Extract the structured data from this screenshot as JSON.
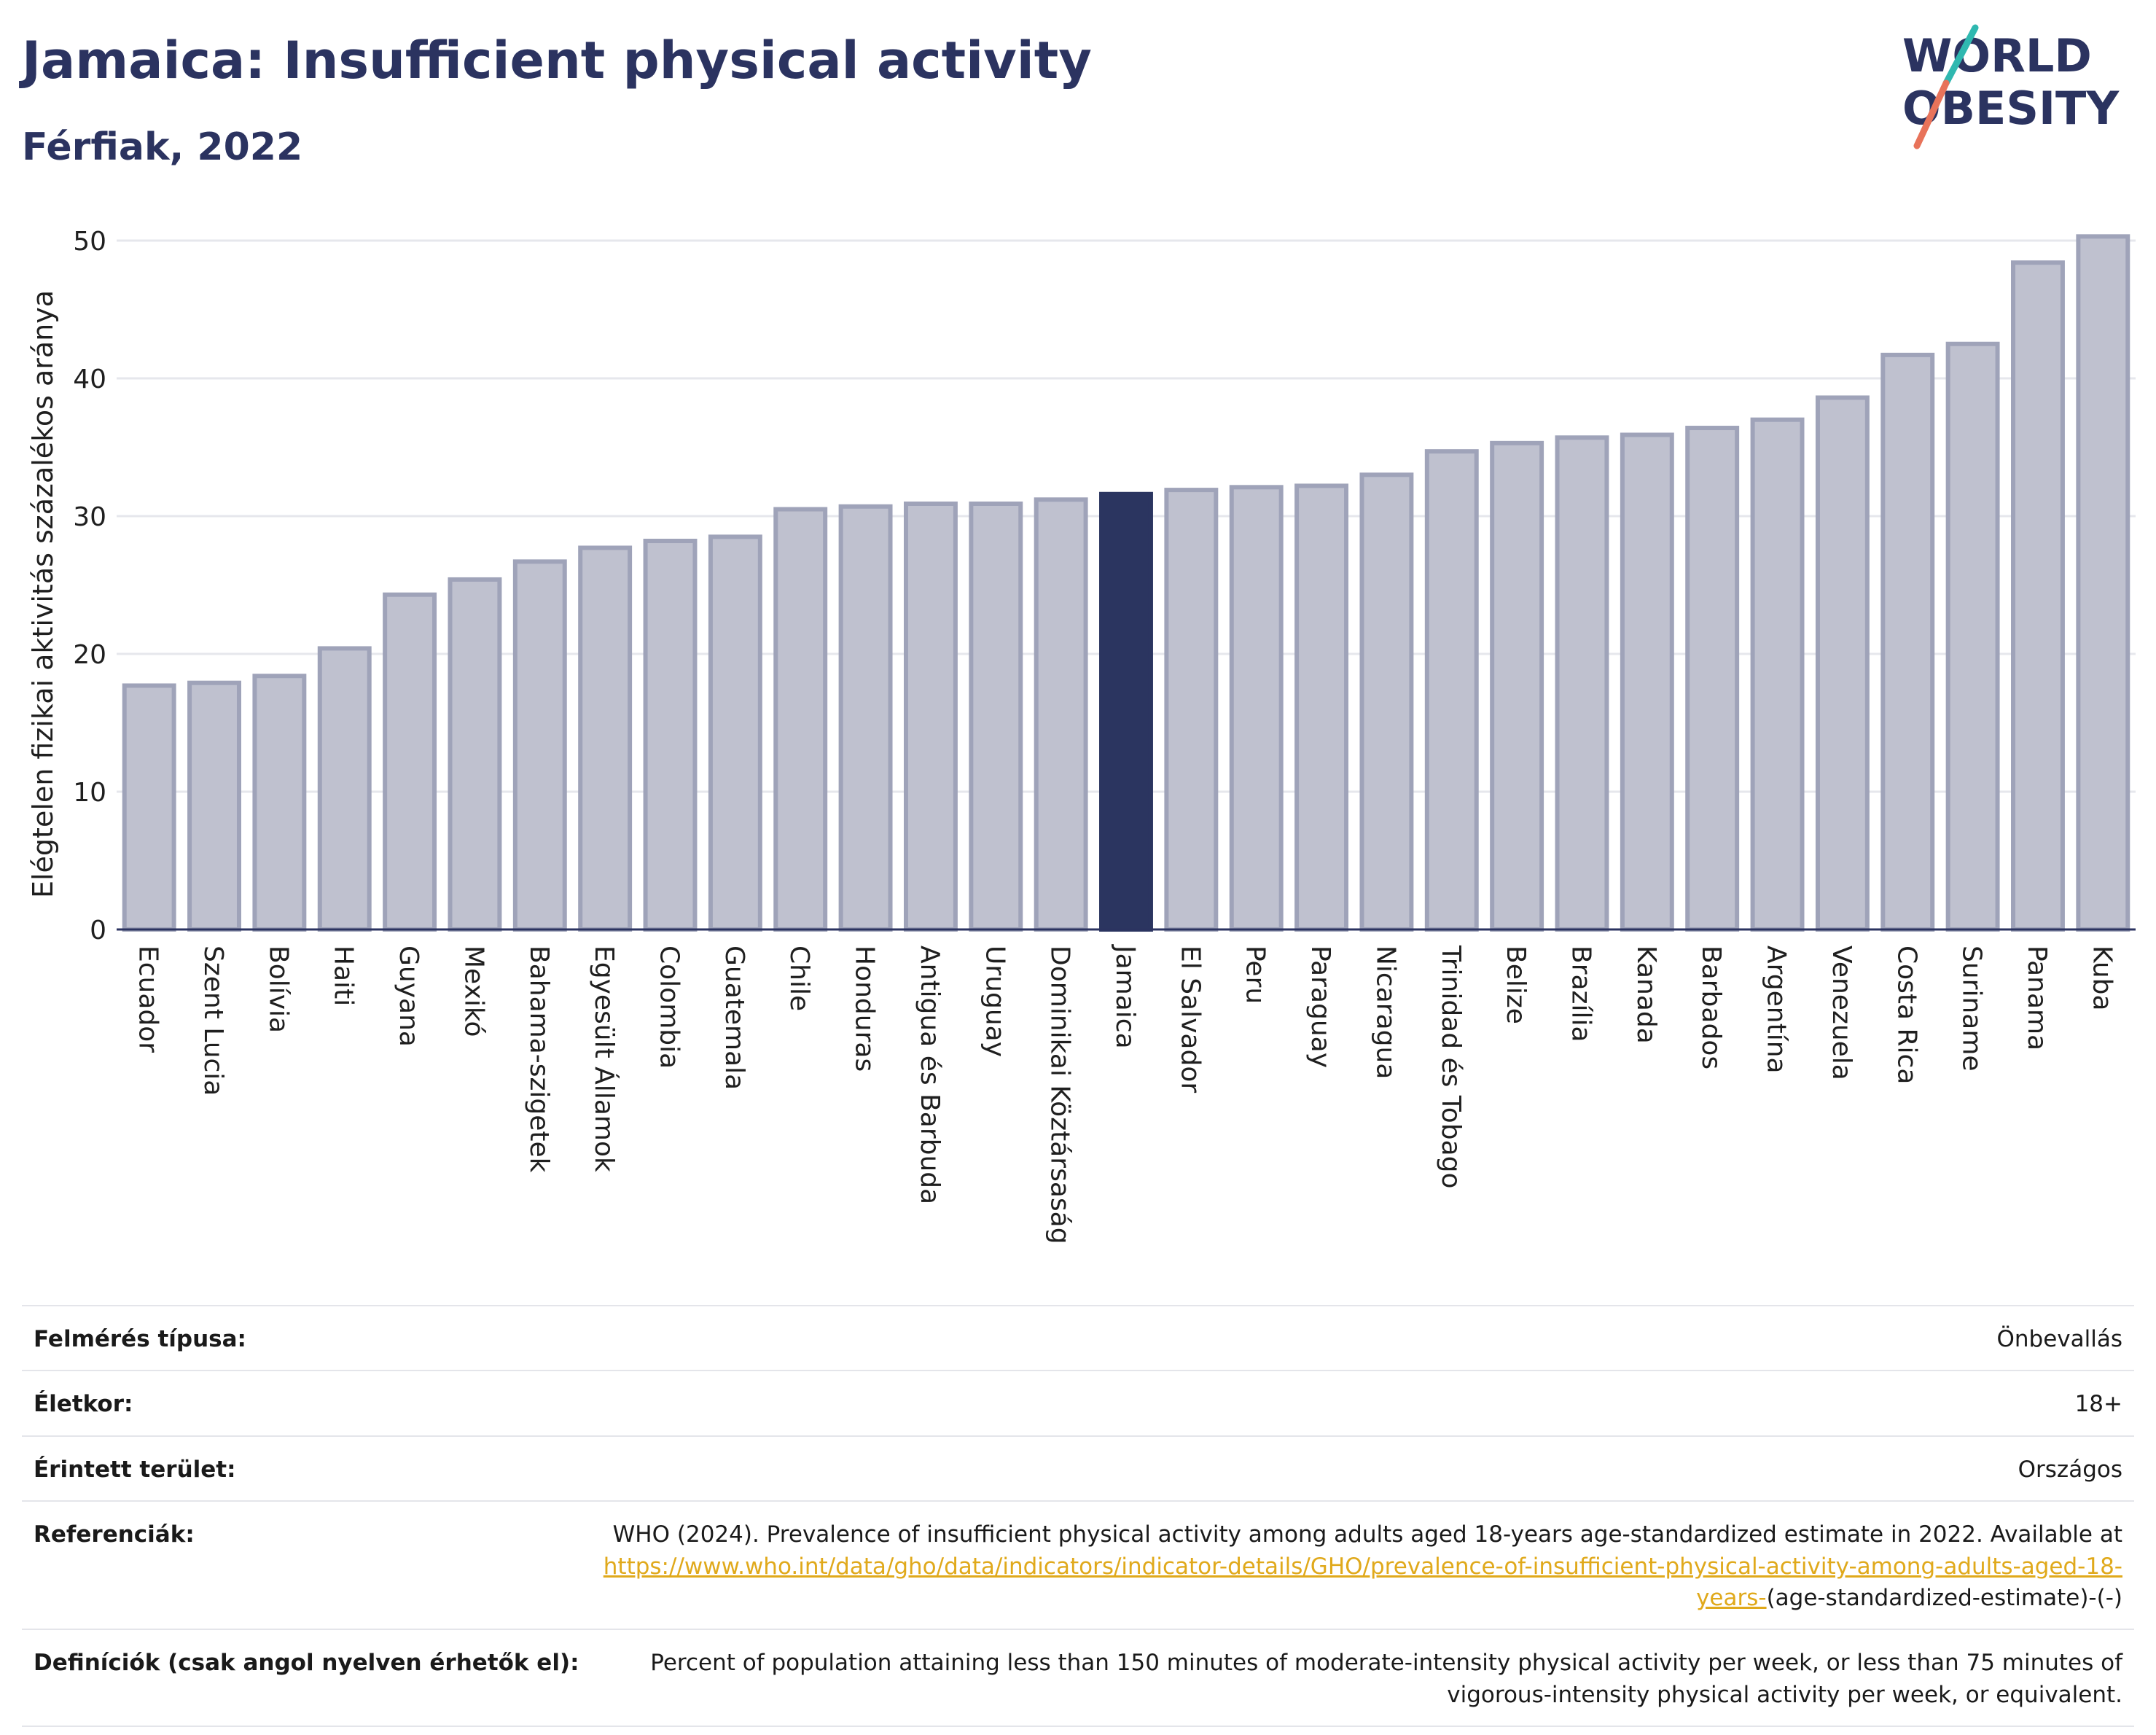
{
  "header": {
    "title": "Jamaica: Insufficient physical activity",
    "subtitle": "Férfiak, 2022"
  },
  "logo": {
    "line1": "WORLD",
    "line2": "OBESITY",
    "colors": {
      "text": "#2b3360",
      "slash_teal": "#2fb8b0",
      "slash_coral": "#e8735a"
    }
  },
  "colors": {
    "bar": "#bfc1cf",
    "bar_border": "#9fa3b9",
    "highlight": "#2b3560",
    "grid": "#e6e7ec",
    "axis": "#2b3360"
  },
  "chart_data": {
    "type": "bar",
    "title": "Jamaica: Insufficient physical activity",
    "subtitle": "Férfiak, 2022",
    "ylabel": "Elégtelen fizikai aktivitás százalékos aránya",
    "xlabel": "",
    "ylim": [
      0,
      50
    ],
    "yticks": [
      0,
      10,
      20,
      30,
      40,
      50
    ],
    "grid": true,
    "highlight": "Jamaica",
    "categories": [
      "Ecuador",
      "Szent Lucia",
      "Bolívia",
      "Haiti",
      "Guyana",
      "Mexikó",
      "Bahama-szigetek",
      "Egyesült Államok",
      "Colombia",
      "Guatemala",
      "Chile",
      "Honduras",
      "Antigua és Barbuda",
      "Uruguay",
      "Dominikai Köztársaság",
      "Jamaica",
      "El Salvador",
      "Peru",
      "Paraguay",
      "Nicaragua",
      "Trinidad és Tobago",
      "Belize",
      "Brazília",
      "Kanada",
      "Barbados",
      "Argentína",
      "Venezuela",
      "Costa Rica",
      "Suriname",
      "Panama",
      "Kuba"
    ],
    "values": [
      17.7,
      17.9,
      18.4,
      20.4,
      24.3,
      25.4,
      26.7,
      27.7,
      28.2,
      28.5,
      30.5,
      30.7,
      30.9,
      30.9,
      31.2,
      31.6,
      31.9,
      32.1,
      32.2,
      33.0,
      34.7,
      35.3,
      35.7,
      35.9,
      36.4,
      37.0,
      38.6,
      41.7,
      42.5,
      48.4,
      50.3
    ]
  },
  "meta": {
    "survey_type": {
      "label": "Felmérés típusa:",
      "value": "Önbevallás"
    },
    "age": {
      "label": "Életkor:",
      "value": "18+"
    },
    "area": {
      "label": "Érintett terület:",
      "value": "Országos"
    },
    "references": {
      "label": "Referenciák:",
      "text": "WHO (2024). Prevalence of insufficient physical activity among adults aged 18-years age-standardized estimate in 2022. Available at",
      "link": "https://www.who.int/data/gho/data/indicators/indicator-details/GHO/prevalence-of-insufficient-physical-activity-among-adults-aged-18-years-",
      "suffix": "(age-standardized-estimate)-(-)"
    },
    "definitions": {
      "label": "Definíciók (csak angol nyelven érhetők el):",
      "value": "Percent of population attaining less than 150 minutes of moderate-intensity physical activity per week, or less than 75 minutes of vigorous-intensity physical activity per week, or equivalent."
    }
  }
}
